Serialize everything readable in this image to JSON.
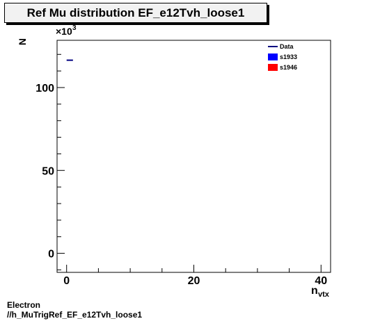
{
  "chart_data": {
    "type": "scatter",
    "title": "Ref Mu distribution EF_e12Tvh_loose1",
    "xlabel_main": "n",
    "xlabel_sub": "vtx",
    "ylabel": "N",
    "y_multiplier": "×10",
    "y_multiplier_exp": "3",
    "xlim": [
      -1.5,
      41.5
    ],
    "ylim": [
      -11.5,
      128.5
    ],
    "x_ticks": [
      0,
      20,
      40
    ],
    "y_ticks": [
      0,
      50,
      100
    ],
    "grid": false,
    "legend_position": "top-right",
    "legend": [
      {
        "label": "Data",
        "style": "line",
        "color": "#000080"
      },
      {
        "label": "s1933",
        "style": "box",
        "color": "#0000ff"
      },
      {
        "label": "s1946",
        "style": "box",
        "color": "#ff0000"
      }
    ],
    "series": [
      {
        "name": "Data",
        "color": "#000080",
        "points": [
          {
            "x": 0.5,
            "y": 116.5
          }
        ]
      }
    ]
  },
  "footer": {
    "line1": "Electron",
    "line2": "//h_MuTrigRef_EF_e12Tvh_loose1"
  }
}
